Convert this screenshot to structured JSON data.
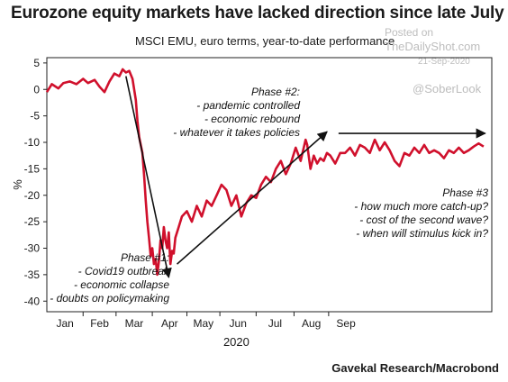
{
  "chart_data": {
    "type": "line",
    "title": "Eurozone equity markets have lacked direction since late July",
    "subtitle": "MSCI EMU, euro terms, year-to-date performance",
    "ylabel": "%",
    "xlabel": "2020",
    "ylim": [
      -42,
      6
    ],
    "yticks": [
      5,
      0,
      -5,
      -10,
      -15,
      -20,
      -25,
      -30,
      -35,
      -40
    ],
    "month_labels": [
      "Jan",
      "Feb",
      "Mar",
      "Apr",
      "May",
      "Jun",
      "Jul",
      "Aug",
      "Sep"
    ],
    "grid": false,
    "series": [
      {
        "color": "#d0102c",
        "x": [
          0,
          3,
          7,
          10,
          14,
          18,
          22,
          25,
          29,
          32,
          35,
          38,
          41,
          44,
          46,
          48,
          50,
          52,
          54,
          55,
          56,
          58,
          59,
          60,
          61,
          62,
          63,
          64,
          65,
          66,
          67,
          68,
          69,
          70,
          71,
          72,
          73,
          74,
          75,
          76,
          77,
          78,
          80,
          82,
          85,
          88,
          91,
          94,
          97,
          100,
          103,
          106,
          109,
          112,
          115,
          118,
          121,
          124,
          127,
          130,
          133,
          136,
          139,
          142,
          145,
          148,
          151,
          154,
          157,
          158,
          160,
          162,
          164,
          166,
          168,
          170,
          172,
          175,
          178,
          181,
          184,
          187,
          190,
          193,
          196,
          199,
          202,
          205,
          208,
          211,
          214,
          217,
          220,
          223,
          226,
          229,
          232,
          235,
          238,
          241,
          244,
          247,
          250,
          253,
          256,
          259,
          262,
          265
        ],
        "values": [
          -0.5,
          1.0,
          0.2,
          1.2,
          1.5,
          1.0,
          2.0,
          1.2,
          1.8,
          0.5,
          -0.5,
          1.5,
          3.0,
          2.5,
          3.8,
          3.2,
          3.5,
          2.0,
          -2.0,
          -6.0,
          -9.0,
          -12.0,
          -16.0,
          -21.0,
          -25.0,
          -28.0,
          -31.5,
          -30.0,
          -33.0,
          -32.0,
          -35.0,
          -32.5,
          -28.5,
          -30.0,
          -26.0,
          -28.5,
          -30.0,
          -27.0,
          -33.0,
          -30.5,
          -31.0,
          -28.0,
          -26.0,
          -24.0,
          -23.0,
          -25.0,
          -22.0,
          -24.0,
          -21.0,
          -22.0,
          -20.0,
          -18.0,
          -19.0,
          -22.0,
          -20.0,
          -24.0,
          -21.5,
          -20.0,
          -20.5,
          -18.0,
          -16.5,
          -17.5,
          -15.0,
          -13.5,
          -16.0,
          -14.0,
          -11.0,
          -13.5,
          -9.5,
          -10.5,
          -15.0,
          -12.5,
          -14.0,
          -13.0,
          -13.5,
          -12.0,
          -12.5,
          -14.0,
          -12.0,
          -12.0,
          -11.0,
          -12.5,
          -10.5,
          -11.0,
          -12.0,
          -9.5,
          -11.5,
          -10.0,
          -11.5,
          -13.5,
          -14.5,
          -12.0,
          -12.5,
          -11.0,
          -12.0,
          -10.5,
          -12.0,
          -11.5,
          -12.0,
          -13.0,
          -11.5,
          -12.0,
          -11.0,
          -12.0,
          -11.5,
          -10.8,
          -10.2,
          -10.8
        ]
      }
    ],
    "annotations": [
      {
        "lines": [
          "Phase #1:",
          "- Covid19 outbreak",
          "- economic collapse",
          "- doubts on policymaking"
        ]
      },
      {
        "lines": [
          "Phase #2:",
          "- pandemic controlled",
          "- economic rebound",
          "- whatever it takes policies"
        ]
      },
      {
        "lines": [
          "Phase #3",
          "- how much more catch-up?",
          "- cost of the second wave?",
          "- when will stimulus kick in?"
        ]
      }
    ]
  },
  "watermark": {
    "line1": "Posted on",
    "line2": "TheDailyShot.com",
    "date": "21-Sep-2020",
    "handle": "@SoberLook"
  },
  "source": "Gavekal Research/Macrobond"
}
